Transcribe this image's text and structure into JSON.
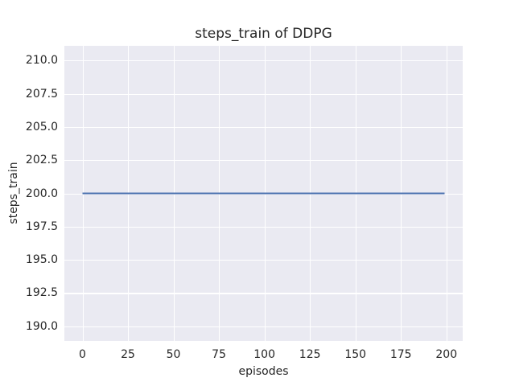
{
  "chart_data": {
    "type": "line",
    "title": "steps_train of DDPG",
    "xlabel": "episodes",
    "ylabel": "steps_train",
    "x_ticks": [
      0,
      25,
      50,
      75,
      100,
      125,
      150,
      175,
      200
    ],
    "y_tick_labels": [
      "190.0",
      "192.5",
      "195.0",
      "197.5",
      "200.0",
      "202.5",
      "205.0",
      "207.5",
      "210.0"
    ],
    "xlim": [
      -9.95,
      208.95
    ],
    "ylim": [
      188.9,
      211.1
    ],
    "grid": true,
    "legend_position": "none",
    "series": [
      {
        "name": "steps_train",
        "color": "#4C72B0",
        "x": [
          0,
          199
        ],
        "y": [
          200,
          200
        ]
      }
    ],
    "plot_background_color": "#EAEAF2",
    "grid_color": "#FFFFFF",
    "text_color": "#262626"
  }
}
